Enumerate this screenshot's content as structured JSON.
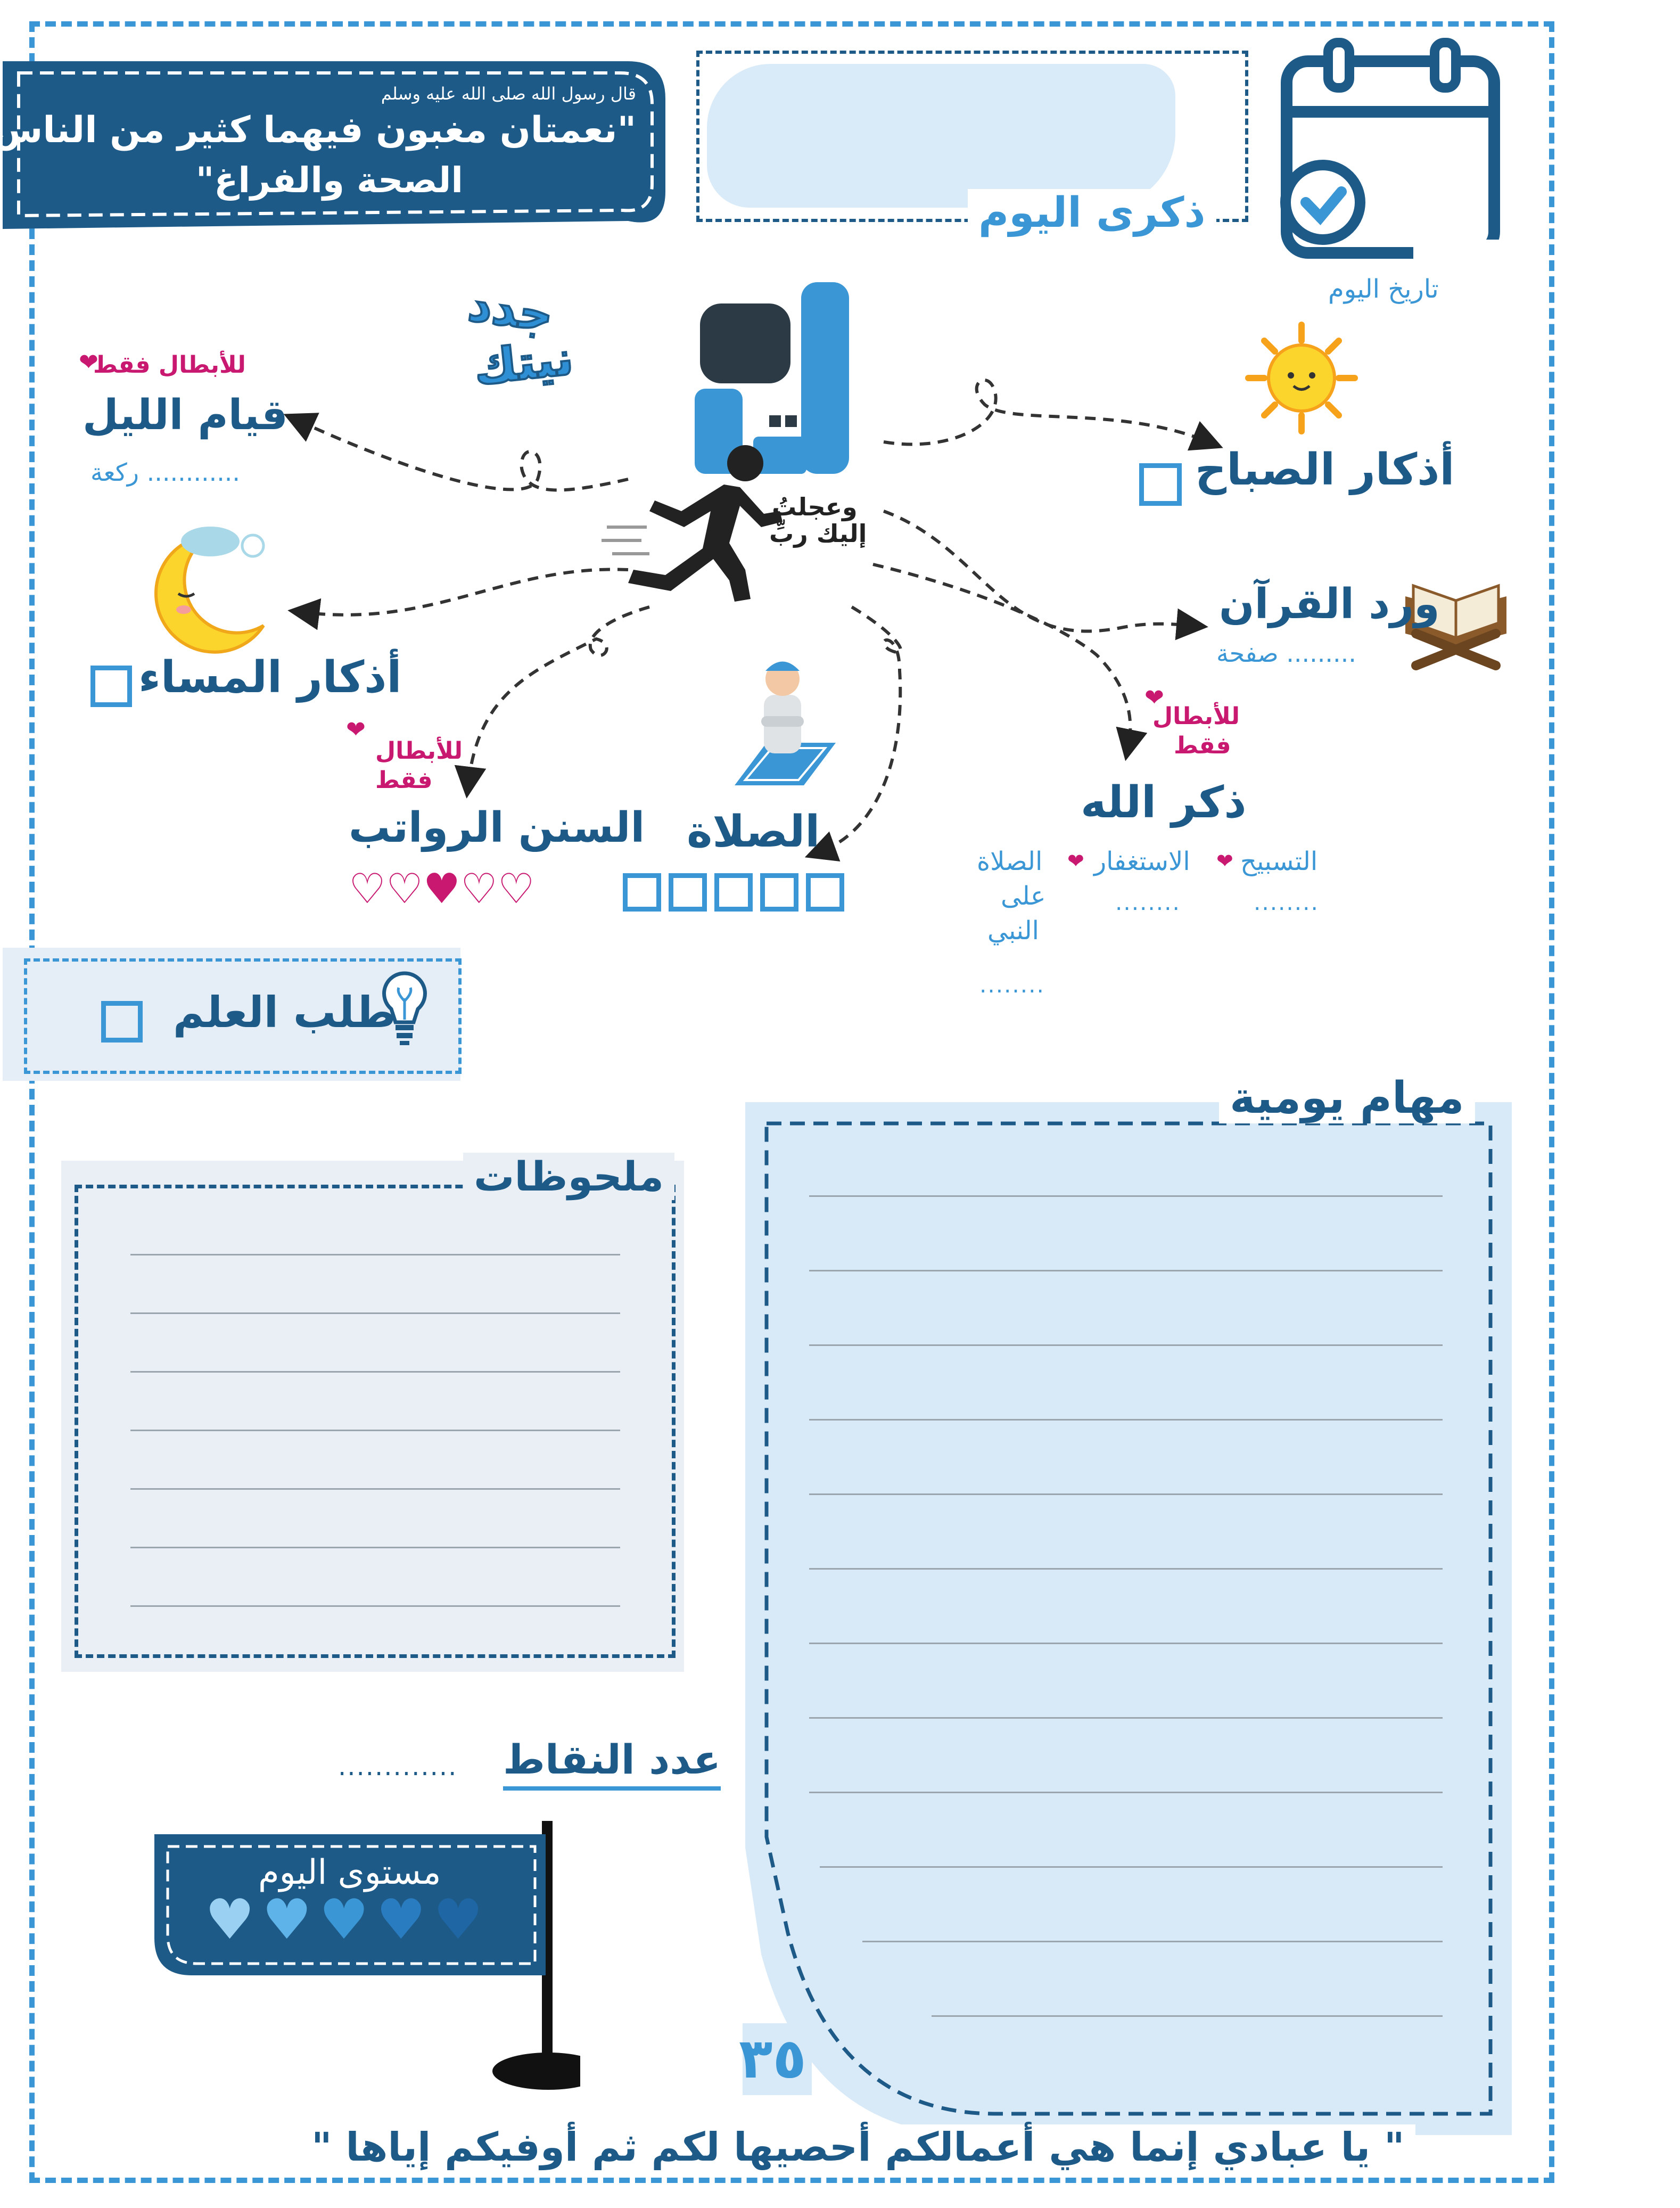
{
  "hadith": {
    "intro": "قال رسول الله صلى الله عليه وسلم",
    "line1": "\"نعمتان مغبون فيهما كثير من الناس،",
    "line2": "الصحة والفراغ\""
  },
  "memory": {
    "title": "ذكرى اليوم"
  },
  "date": {
    "label": "تاريخ اليوم"
  },
  "logo": {
    "slogan1": "جدد",
    "slogan2": "نيتك",
    "verse1": "وعجلتُ",
    "verse2": "إليك ربِّ"
  },
  "tasks": {
    "qiyam": {
      "badge": "للأبطال فقط",
      "title": "قيام الليل",
      "unit": "............ ركعة"
    },
    "morning": {
      "title": "أذكار الصباح"
    },
    "evening": {
      "title": "أذكار المساء"
    },
    "quran": {
      "title": "ورد القرآن",
      "unit": "......... صفحة"
    },
    "sunan": {
      "badge1": "للأبطال",
      "badge2": "فقط",
      "title": "السنن الرواتب",
      "hearts_filled": 1,
      "hearts_total": 5
    },
    "salah": {
      "title": "الصلاة",
      "boxes": 5
    },
    "dhikr": {
      "badge1": "للأبطال",
      "badge2": "فقط",
      "title": "ذكر الله",
      "tasbih": "التسبيح",
      "istighfar": "الاستغفار",
      "salat1": "الصلاة",
      "salat2": "على",
      "salat3": "النبي",
      "dots1": "........",
      "dots2": "........",
      "dots3": "........"
    },
    "ilm": {
      "title": "طلب العلم"
    }
  },
  "notes": {
    "title": "ملحوظات"
  },
  "daily": {
    "title": "مهام يومية"
  },
  "points": {
    "label": "عدد النقاط",
    "dots": "............."
  },
  "level": {
    "label": "مستوى اليوم",
    "hearts": 5
  },
  "page_number": "٣٥",
  "footer": "\" يا عبادي إنما هي أعمالكم أحصيها لكم ثم أوفيكم إياها \"",
  "colors": {
    "navy": "#1d5a87",
    "blue": "#3a96d4",
    "pink": "#c8186f",
    "light": "#d8e9f8"
  }
}
